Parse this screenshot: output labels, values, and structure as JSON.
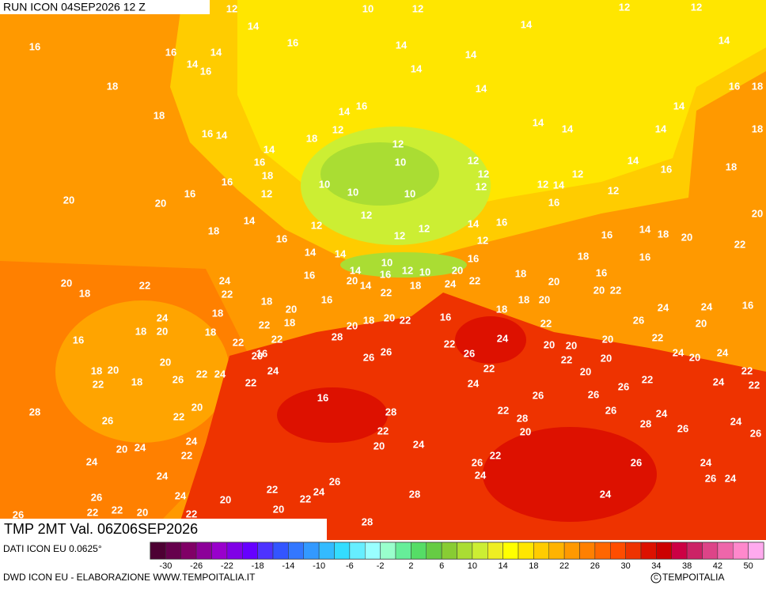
{
  "header": {
    "title": "RUN ICON 04SEP2026 12 Z"
  },
  "map": {
    "subtitle": "TMP 2MT Val. 06Z06SEP2026",
    "labels": [
      12,
      10,
      12,
      12,
      12,
      14,
      14,
      16,
      16,
      16,
      14,
      14,
      14,
      14,
      14,
      16,
      14,
      18,
      14,
      16,
      18,
      18,
      14,
      16,
      14,
      16,
      14,
      12,
      18,
      14,
      14,
      14,
      18,
      14,
      16,
      12,
      14,
      18,
      10,
      12,
      12,
      12,
      16,
      18,
      16,
      12,
      10,
      10,
      10,
      12,
      12,
      14,
      12,
      20,
      20,
      16,
      12,
      16,
      20,
      14,
      12,
      14,
      16,
      18,
      16,
      12,
      12,
      12,
      16,
      14,
      18,
      20,
      22,
      14,
      14,
      16,
      18,
      16,
      10,
      12,
      10,
      14,
      16,
      20,
      20,
      22,
      24,
      16,
      20,
      14,
      18,
      24,
      22,
      18,
      16,
      20,
      20,
      22,
      18,
      22,
      16,
      22,
      18,
      18,
      20,
      18,
      24,
      24,
      16,
      20,
      24,
      20,
      22,
      18,
      18,
      20,
      22,
      26,
      16,
      22,
      20,
      18,
      16,
      18,
      20,
      18,
      22,
      22,
      16,
      20,
      28,
      24,
      20,
      20,
      20,
      22,
      24,
      24,
      20,
      22,
      26,
      26,
      26,
      22,
      20,
      18,
      20,
      20,
      22,
      24,
      24,
      22,
      20,
      22,
      22,
      18,
      26,
      22,
      24,
      26,
      22,
      24,
      22,
      28,
      26,
      22,
      20,
      16,
      28,
      22,
      26,
      26,
      24,
      26,
      24,
      20,
      24,
      22,
      22,
      20,
      24,
      28,
      20,
      28,
      26,
      24,
      26,
      24,
      24,
      26,
      22,
      24,
      26,
      24,
      26,
      26,
      24,
      26,
      24,
      22,
      20,
      22,
      24,
      28,
      24,
      26,
      22,
      22,
      20,
      22,
      20,
      28
    ]
  },
  "colorbar": {
    "colors": [
      "#4d0033",
      "#66004d",
      "#800066",
      "#8c0099",
      "#9900cc",
      "#8000e6",
      "#6600ff",
      "#4d33ff",
      "#3355ff",
      "#3377ff",
      "#3399ff",
      "#33bbff",
      "#33ddff",
      "#66eeff",
      "#99ffff",
      "#99ffcc",
      "#66ee99",
      "#55dd66",
      "#66cc44",
      "#88cc33",
      "#aadd33",
      "#ccee33",
      "#eeee22",
      "#ffff00",
      "#ffe600",
      "#ffcc00",
      "#ffb300",
      "#ff9900",
      "#ff8000",
      "#ff6600",
      "#ff4d00",
      "#ee3300",
      "#dd1100",
      "#cc0000",
      "#cc0044",
      "#cc2266",
      "#dd4488",
      "#ee66aa",
      "#ff88cc",
      "#ffaaee"
    ],
    "ticks": [
      -30,
      -26,
      -22,
      -18,
      -14,
      -10,
      -6,
      -2,
      2,
      6,
      10,
      14,
      18,
      22,
      26,
      30,
      34,
      38,
      42,
      50
    ]
  },
  "footer": {
    "source": "DATI ICON EU 0.0625°",
    "credit": "DWD ICON EU - ELABORAZIONE WWW.TEMPOITALIA.IT",
    "brand": "TEMPOITALIA"
  }
}
